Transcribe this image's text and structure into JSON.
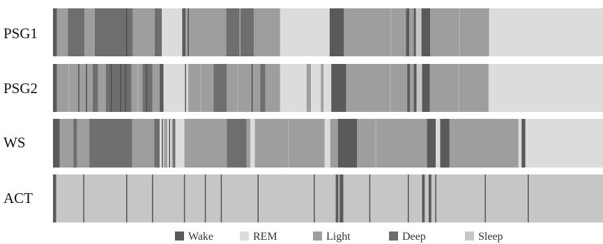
{
  "chart_data": {
    "type": "heatmap",
    "title": "",
    "xlabel": "",
    "ylabel": "",
    "x_range": [
      0,
      100
    ],
    "colors": {
      "Wake": "#5a5a5a",
      "REM": "#dcdcdc",
      "Light": "#9e9e9e",
      "Deep": "#6e6e6e",
      "Sleep": "#c6c6c6",
      "thin_wake": "#4a4a4a",
      "thin_light": "#b3b3b3"
    },
    "legend": {
      "position": "bottom",
      "items": [
        {
          "label": "Wake",
          "color": "#5a5a5a"
        },
        {
          "label": "REM",
          "color": "#dcdcdc"
        },
        {
          "label": "Light",
          "color": "#9e9e9e"
        },
        {
          "label": "Deep",
          "color": "#6e6e6e"
        },
        {
          "label": "Sleep",
          "color": "#c6c6c6"
        }
      ]
    },
    "rows": [
      {
        "label": "PSG1",
        "segments": [
          {
            "stage": "Wake",
            "start": 0,
            "end": 0.7
          },
          {
            "stage": "Light",
            "start": 0.7,
            "end": 2.7
          },
          {
            "stage": "Deep",
            "start": 2.7,
            "end": 5.7
          },
          {
            "stage": "Light",
            "start": 5.7,
            "end": 7.6
          },
          {
            "stage": "Deep",
            "start": 7.6,
            "end": 14.5
          },
          {
            "stage": "Light",
            "start": 14.5,
            "end": 18.5
          },
          {
            "stage": "Deep",
            "start": 18.5,
            "end": 19.8
          },
          {
            "stage": "REM",
            "start": 19.8,
            "end": 23.5
          },
          {
            "stage": "Wake",
            "start": 23.5,
            "end": 24.1
          },
          {
            "stage": "Light",
            "start": 24.1,
            "end": 31.5
          },
          {
            "stage": "Deep",
            "start": 31.5,
            "end": 36.5
          },
          {
            "stage": "Light",
            "start": 36.5,
            "end": 41.3
          },
          {
            "stage": "REM",
            "start": 41.3,
            "end": 50.3
          },
          {
            "stage": "Wake",
            "start": 50.3,
            "end": 52.9
          },
          {
            "stage": "Light",
            "start": 52.9,
            "end": 64.2
          },
          {
            "stage": "Wake",
            "start": 64.2,
            "end": 64.8
          },
          {
            "stage": "Light",
            "start": 64.8,
            "end": 65.6
          },
          {
            "stage": "Wake",
            "start": 65.6,
            "end": 66.0
          },
          {
            "stage": "Sleep",
            "start": 66.0,
            "end": 67.0
          },
          {
            "stage": "Wake",
            "start": 67.0,
            "end": 68.6
          },
          {
            "stage": "Light",
            "start": 68.6,
            "end": 79.3
          },
          {
            "stage": "REM",
            "start": 79.3,
            "end": 100
          }
        ],
        "lines": [
          {
            "type": "thin_wake",
            "x": 24.6
          },
          {
            "type": "thin_wake",
            "x": 13.4
          },
          {
            "type": "thin_light",
            "x": 34.0
          },
          {
            "type": "thin_light",
            "x": 61.4
          },
          {
            "type": "thin_light",
            "x": 73.9
          }
        ]
      },
      {
        "label": "PSG2",
        "segments": [
          {
            "stage": "Wake",
            "start": 0,
            "end": 0.7
          },
          {
            "stage": "Light",
            "start": 0.7,
            "end": 7.2
          },
          {
            "stage": "Deep",
            "start": 7.2,
            "end": 8.2
          },
          {
            "stage": "Light",
            "start": 8.2,
            "end": 9.6
          },
          {
            "stage": "Deep",
            "start": 9.6,
            "end": 14.3
          },
          {
            "stage": "Light",
            "start": 14.3,
            "end": 16.3
          },
          {
            "stage": "Deep",
            "start": 16.3,
            "end": 18.1
          },
          {
            "stage": "Light",
            "start": 18.1,
            "end": 19.4
          },
          {
            "stage": "Wake",
            "start": 19.4,
            "end": 20.1
          },
          {
            "stage": "REM",
            "start": 20.1,
            "end": 24.6
          },
          {
            "stage": "Light",
            "start": 24.6,
            "end": 29.2
          },
          {
            "stage": "Deep",
            "start": 29.2,
            "end": 31.6
          },
          {
            "stage": "Light",
            "start": 31.6,
            "end": 37.7
          },
          {
            "stage": "Deep",
            "start": 37.7,
            "end": 38.6
          },
          {
            "stage": "Light",
            "start": 38.6,
            "end": 41.3
          },
          {
            "stage": "REM",
            "start": 41.3,
            "end": 46.1
          },
          {
            "stage": "Light",
            "start": 46.1,
            "end": 46.9
          },
          {
            "stage": "REM",
            "start": 46.9,
            "end": 48.7
          },
          {
            "stage": "Light",
            "start": 48.7,
            "end": 49.2
          },
          {
            "stage": "REM",
            "start": 49.2,
            "end": 50.6
          },
          {
            "stage": "Wake",
            "start": 50.6,
            "end": 53.3
          },
          {
            "stage": "Light",
            "start": 53.3,
            "end": 64.4
          },
          {
            "stage": "Wake",
            "start": 64.4,
            "end": 64.9
          },
          {
            "stage": "Light",
            "start": 64.9,
            "end": 65.6
          },
          {
            "stage": "Wake",
            "start": 65.6,
            "end": 66.1
          },
          {
            "stage": "Sleep",
            "start": 66.1,
            "end": 67.1
          },
          {
            "stage": "Wake",
            "start": 67.1,
            "end": 68.5
          },
          {
            "stage": "Light",
            "start": 68.5,
            "end": 79.2
          },
          {
            "stage": "REM",
            "start": 79.2,
            "end": 100
          }
        ],
        "lines": [
          {
            "type": "thin_wake",
            "x": 4.7
          },
          {
            "type": "thin_wake",
            "x": 6.1
          },
          {
            "type": "thin_wake",
            "x": 10.6
          },
          {
            "type": "thin_wake",
            "x": 12.3
          },
          {
            "type": "thin_wake",
            "x": 13.2
          },
          {
            "type": "thin_wake",
            "x": 17.0
          },
          {
            "type": "thin_wake",
            "x": 24.1
          },
          {
            "type": "thin_wake",
            "x": 36.2
          },
          {
            "type": "thin_light",
            "x": 2.9
          },
          {
            "type": "thin_light",
            "x": 15.4
          },
          {
            "type": "thin_light",
            "x": 26.9
          },
          {
            "type": "thin_light",
            "x": 33.6
          },
          {
            "type": "thin_light",
            "x": 61.3
          },
          {
            "type": "thin_light",
            "x": 73.8
          }
        ]
      },
      {
        "label": "WS",
        "segments": [
          {
            "stage": "Wake",
            "start": 0,
            "end": 1.2
          },
          {
            "stage": "Light",
            "start": 1.2,
            "end": 3.7
          },
          {
            "stage": "Deep",
            "start": 3.7,
            "end": 4.4
          },
          {
            "stage": "Light",
            "start": 4.4,
            "end": 6.6
          },
          {
            "stage": "Deep",
            "start": 6.6,
            "end": 14.4
          },
          {
            "stage": "Light",
            "start": 14.4,
            "end": 18.4
          },
          {
            "stage": "Deep",
            "start": 18.4,
            "end": 19.4
          },
          {
            "stage": "REM",
            "start": 19.4,
            "end": 20.2
          },
          {
            "stage": "Light",
            "start": 20.2,
            "end": 20.8
          },
          {
            "stage": "REM",
            "start": 20.8,
            "end": 21.6
          },
          {
            "stage": "Light",
            "start": 21.6,
            "end": 22.3
          },
          {
            "stage": "REM",
            "start": 22.3,
            "end": 23.9
          },
          {
            "stage": "Light",
            "start": 23.9,
            "end": 31.6
          },
          {
            "stage": "Deep",
            "start": 31.6,
            "end": 35.2
          },
          {
            "stage": "Light",
            "start": 35.2,
            "end": 35.9
          },
          {
            "stage": "REM",
            "start": 35.9,
            "end": 36.7
          },
          {
            "stage": "Light",
            "start": 36.7,
            "end": 49.4
          },
          {
            "stage": "REM",
            "start": 49.4,
            "end": 50.4
          },
          {
            "stage": "Light",
            "start": 50.4,
            "end": 51.8
          },
          {
            "stage": "Wake",
            "start": 51.8,
            "end": 55.3
          },
          {
            "stage": "Light",
            "start": 55.3,
            "end": 68.0
          },
          {
            "stage": "Wake",
            "start": 68.0,
            "end": 69.6
          },
          {
            "stage": "REM",
            "start": 69.6,
            "end": 70.4
          },
          {
            "stage": "Wake",
            "start": 70.4,
            "end": 72.1
          },
          {
            "stage": "Light",
            "start": 72.1,
            "end": 84.6
          },
          {
            "stage": "REM",
            "start": 84.6,
            "end": 85.2
          },
          {
            "stage": "Wake",
            "start": 85.2,
            "end": 85.9
          },
          {
            "stage": "REM",
            "start": 85.9,
            "end": 100
          }
        ],
        "lines": [
          {
            "type": "thin_wake",
            "x": 19.9
          },
          {
            "type": "thin_wake",
            "x": 21.2
          },
          {
            "type": "thin_wake",
            "x": 22.0
          },
          {
            "type": "thin_light",
            "x": 42.8
          },
          {
            "type": "thin_light",
            "x": 58.7
          }
        ]
      },
      {
        "label": "ACT",
        "segments": [
          {
            "stage": "Wake",
            "start": 0,
            "end": 0.6
          },
          {
            "stage": "Sleep",
            "start": 0.6,
            "end": 51.4
          },
          {
            "stage": "Wake",
            "start": 51.4,
            "end": 51.9
          },
          {
            "stage": "Sleep",
            "start": 51.9,
            "end": 52.1
          },
          {
            "stage": "Wake",
            "start": 52.1,
            "end": 52.8
          },
          {
            "stage": "Sleep",
            "start": 52.8,
            "end": 67.1
          },
          {
            "stage": "Wake",
            "start": 67.1,
            "end": 67.6
          },
          {
            "stage": "Sleep",
            "start": 67.6,
            "end": 68.3
          },
          {
            "stage": "Wake",
            "start": 68.3,
            "end": 68.8
          },
          {
            "stage": "Sleep",
            "start": 68.8,
            "end": 100
          }
        ],
        "lines": [
          {
            "type": "thin_wake",
            "x": 5.6
          },
          {
            "type": "thin_wake",
            "x": 13.4
          },
          {
            "type": "thin_wake",
            "x": 18.1
          },
          {
            "type": "thin_wake",
            "x": 23.9
          },
          {
            "type": "thin_wake",
            "x": 27.7
          },
          {
            "type": "thin_wake",
            "x": 30.6
          },
          {
            "type": "thin_wake",
            "x": 37.3
          },
          {
            "type": "thin_wake",
            "x": 47.5
          },
          {
            "type": "thin_wake",
            "x": 57.6
          },
          {
            "type": "thin_wake",
            "x": 64.6
          },
          {
            "type": "thin_wake",
            "x": 69.6
          },
          {
            "type": "thin_wake",
            "x": 78.6
          },
          {
            "type": "thin_wake",
            "x": 86.4
          }
        ]
      }
    ]
  }
}
